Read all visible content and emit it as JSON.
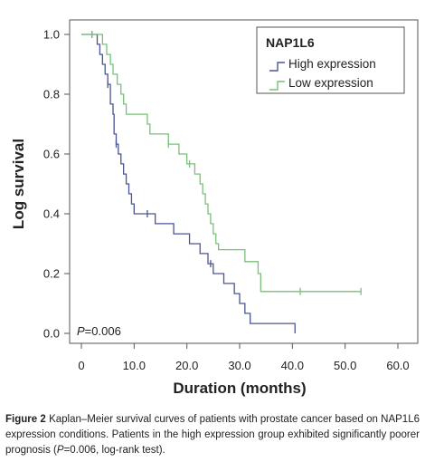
{
  "chart_data": {
    "type": "line",
    "subtype": "kaplan-meier",
    "xlabel": "Duration (months)",
    "ylabel": "Log survival",
    "xlim": [
      0,
      60
    ],
    "ylim": [
      0,
      1
    ],
    "xticks": [
      "0",
      "10.0",
      "20.0",
      "30.0",
      "40.0",
      "50.0",
      "60.0"
    ],
    "yticks": [
      "0.0",
      "0.2",
      "0.4",
      "0.6",
      "0.8",
      "1.0"
    ],
    "legend_title": "NAP1L6",
    "legend_position": "top-right",
    "annotation": "=0.006",
    "annotation_prefix": "P",
    "grid": false,
    "series": [
      {
        "name": "High expression",
        "color": "#4a5595",
        "points": [
          [
            0,
            1.0
          ],
          [
            2.5,
            1.0
          ],
          [
            3,
            0.967
          ],
          [
            3.5,
            0.933
          ],
          [
            4,
            0.9
          ],
          [
            4.5,
            0.867
          ],
          [
            5,
            0.833
          ],
          [
            5.5,
            0.767
          ],
          [
            6,
            0.733
          ],
          [
            6.2,
            0.667
          ],
          [
            6.6,
            0.633
          ],
          [
            7,
            0.6
          ],
          [
            7.5,
            0.567
          ],
          [
            8,
            0.533
          ],
          [
            8.5,
            0.5
          ],
          [
            9,
            0.467
          ],
          [
            9.5,
            0.433
          ],
          [
            10,
            0.4
          ],
          [
            13.5,
            0.4
          ],
          [
            14,
            0.367
          ],
          [
            17,
            0.367
          ],
          [
            17.5,
            0.333
          ],
          [
            20,
            0.333
          ],
          [
            20.5,
            0.3
          ],
          [
            22,
            0.3
          ],
          [
            22.5,
            0.267
          ],
          [
            23.5,
            0.267
          ],
          [
            24,
            0.233
          ],
          [
            25,
            0.2
          ],
          [
            27,
            0.167
          ],
          [
            29,
            0.133
          ],
          [
            30,
            0.1
          ],
          [
            31,
            0.067
          ],
          [
            32,
            0.033
          ],
          [
            40.5,
            0.033
          ],
          [
            40.5,
            0.0
          ]
        ],
        "censor_x": [
          2,
          5,
          6.6,
          12.5,
          24.5
        ]
      },
      {
        "name": "Low expression",
        "color": "#79c079",
        "points": [
          [
            0,
            1.0
          ],
          [
            3.5,
            1.0
          ],
          [
            4,
            0.967
          ],
          [
            4.8,
            0.933
          ],
          [
            5.5,
            0.9
          ],
          [
            6,
            0.867
          ],
          [
            6.8,
            0.833
          ],
          [
            7.5,
            0.8
          ],
          [
            8,
            0.767
          ],
          [
            8.5,
            0.733
          ],
          [
            12,
            0.733
          ],
          [
            12.5,
            0.7
          ],
          [
            13,
            0.667
          ],
          [
            16,
            0.667
          ],
          [
            16.5,
            0.633
          ],
          [
            18,
            0.633
          ],
          [
            18.5,
            0.6
          ],
          [
            19.5,
            0.6
          ],
          [
            20,
            0.567
          ],
          [
            21,
            0.567
          ],
          [
            21.5,
            0.533
          ],
          [
            22.5,
            0.5
          ],
          [
            23,
            0.467
          ],
          [
            23.5,
            0.433
          ],
          [
            24,
            0.4
          ],
          [
            24.5,
            0.367
          ],
          [
            25,
            0.333
          ],
          [
            25.5,
            0.3
          ],
          [
            26,
            0.28
          ],
          [
            30.5,
            0.28
          ],
          [
            31,
            0.24
          ],
          [
            33,
            0.24
          ],
          [
            33.5,
            0.2
          ],
          [
            34,
            0.14
          ],
          [
            53,
            0.14
          ]
        ],
        "censor_x": [
          2,
          16.5,
          20.5,
          41.5,
          53
        ]
      }
    ]
  },
  "caption": {
    "label": "Figure 2",
    "text": " Kaplan–Meier survival curves of patients with prostate cancer based on NAP1L6 expression conditions. Patients in the high expression group exhibited significantly poorer prognosis (",
    "p_italic": "P",
    "text_end": "=0.006, log-rank test)."
  }
}
